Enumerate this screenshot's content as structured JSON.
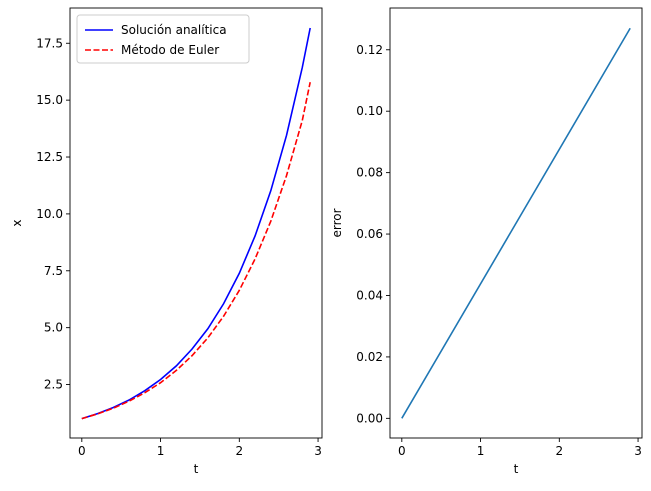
{
  "chart_data": [
    {
      "type": "line",
      "xlabel": "t",
      "ylabel": "x",
      "xlim": [
        -0.15,
        3.05
      ],
      "ylim": [
        0.15,
        19.05
      ],
      "xticks": [
        0,
        1,
        2,
        3
      ],
      "xtick_labels": [
        "0",
        "1",
        "2",
        "3"
      ],
      "yticks": [
        2.5,
        5.0,
        7.5,
        10.0,
        12.5,
        15.0,
        17.5
      ],
      "ytick_labels": [
        "2.5",
        "5.0",
        "7.5",
        "10.0",
        "12.5",
        "15.0",
        "17.5"
      ],
      "grid": false,
      "legend_position": "upper-left",
      "series": [
        {
          "name": "Solución analítica",
          "color": "#0000ff",
          "style": "solid",
          "x": [
            0,
            0.2,
            0.4,
            0.6,
            0.8,
            1.0,
            1.2,
            1.4,
            1.6,
            1.8,
            2.0,
            2.2,
            2.4,
            2.6,
            2.8,
            2.9
          ],
          "y": [
            1.0,
            1.22,
            1.49,
            1.82,
            2.23,
            2.72,
            3.32,
            4.06,
            4.95,
            6.05,
            7.39,
            9.03,
            11.02,
            13.46,
            16.44,
            18.17
          ]
        },
        {
          "name": "Método de Euler",
          "color": "#ff0000",
          "style": "dashed",
          "x": [
            0,
            0.2,
            0.4,
            0.6,
            0.8,
            1.0,
            1.2,
            1.4,
            1.6,
            1.8,
            2.0,
            2.2,
            2.4,
            2.6,
            2.8,
            2.9
          ],
          "y": [
            1.0,
            1.21,
            1.46,
            1.77,
            2.14,
            2.58,
            3.12,
            3.77,
            4.55,
            5.5,
            6.64,
            8.02,
            9.68,
            11.69,
            14.11,
            15.79
          ]
        }
      ]
    },
    {
      "type": "line",
      "xlabel": "t",
      "ylabel": "error",
      "xlim": [
        -0.15,
        3.05
      ],
      "ylim": [
        -0.0064,
        0.1336
      ],
      "xticks": [
        0,
        1,
        2,
        3
      ],
      "xtick_labels": [
        "0",
        "1",
        "2",
        "3"
      ],
      "yticks": [
        0.0,
        0.02,
        0.04,
        0.06,
        0.08,
        0.1,
        0.12
      ],
      "ytick_labels": [
        "0.00",
        "0.02",
        "0.04",
        "0.06",
        "0.08",
        "0.10",
        "0.12"
      ],
      "grid": false,
      "series": [
        {
          "color": "#1f77b4",
          "style": "solid",
          "x": [
            0,
            2.9
          ],
          "y": [
            0.0,
            0.127
          ]
        }
      ]
    }
  ]
}
